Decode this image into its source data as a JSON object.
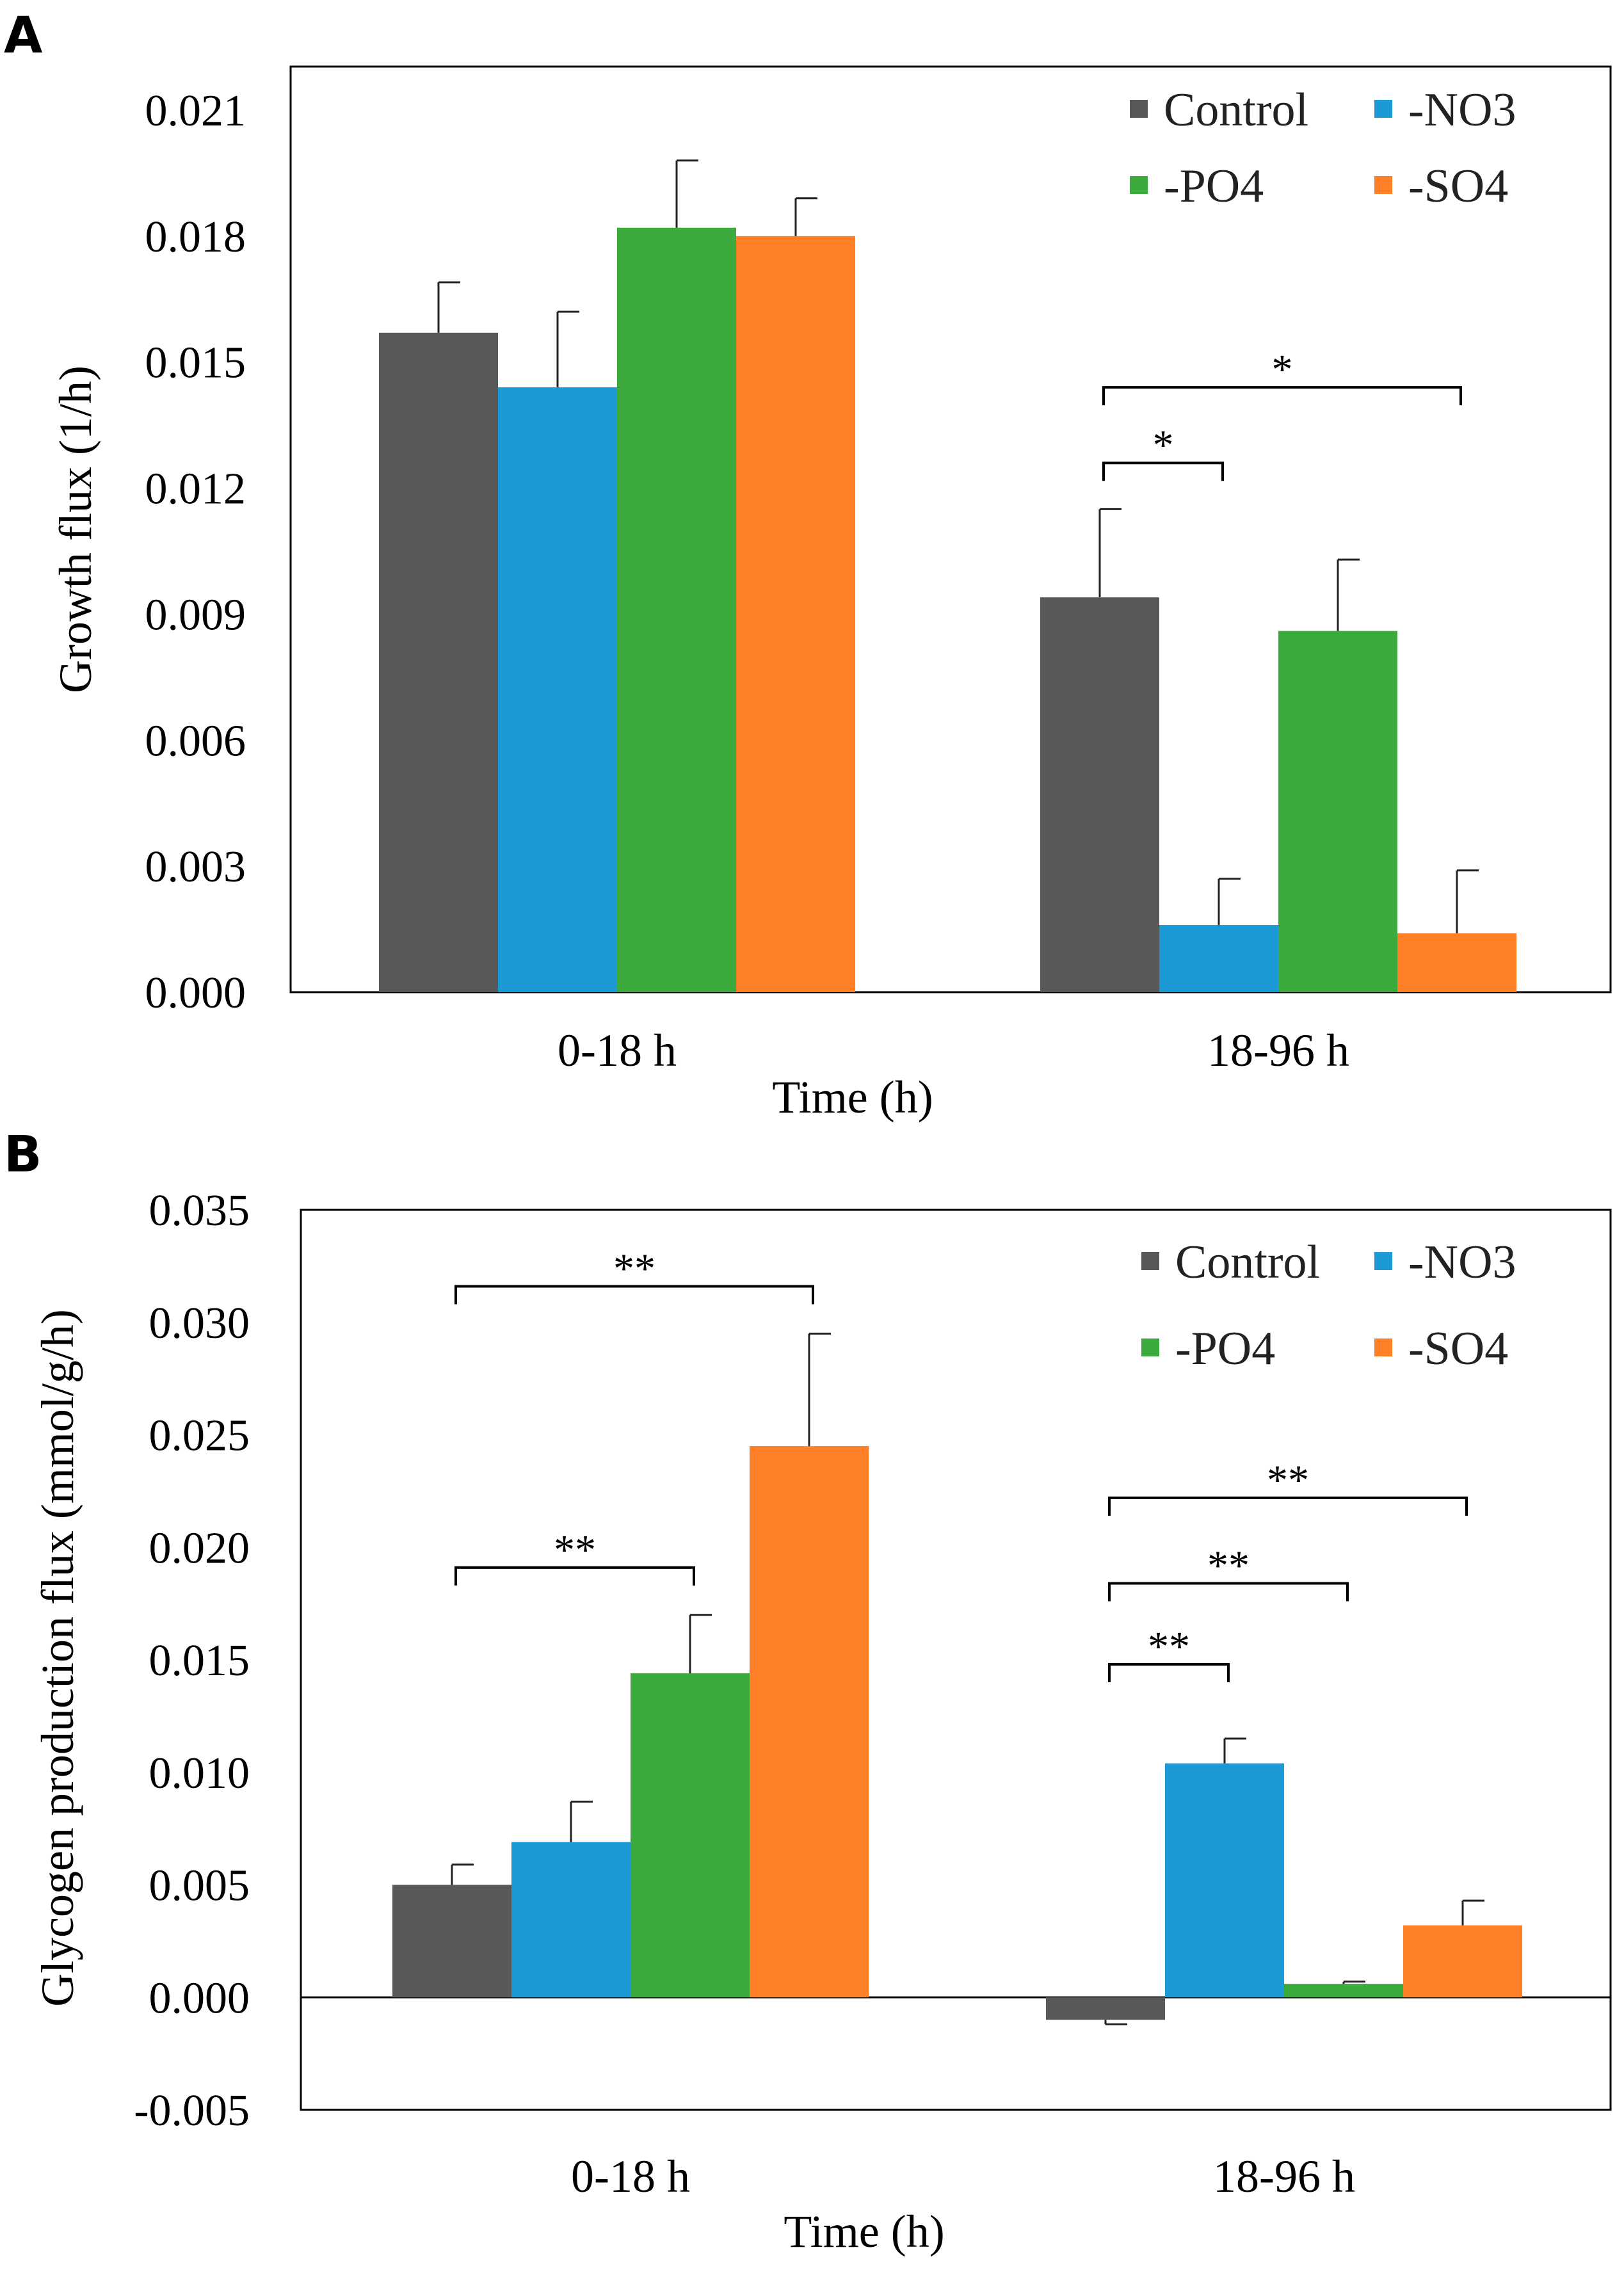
{
  "panels": [
    {
      "letter": "A",
      "chart_data": {
        "type": "bar",
        "title": "",
        "xlabel": "Time (h)",
        "ylabel": "Growth flux (1/h)",
        "ylim": [
          0,
          0.021
        ],
        "yticks": [
          "0.000",
          "0.003",
          "0.006",
          "0.009",
          "0.012",
          "0.015",
          "0.018",
          "0.021"
        ],
        "ytick_values": [
          0,
          0.003,
          0.006,
          0.009,
          0.012,
          0.015,
          0.018,
          0.021
        ],
        "categories": [
          "0-18 h",
          "18-96 h"
        ],
        "series": [
          {
            "name": "Control",
            "color": "#595959",
            "values": [
              0.0157,
              0.0094
            ],
            "errors": [
              0.0012,
              0.0021
            ]
          },
          {
            "name": "-NO3",
            "color": "#1C9AD6",
            "values": [
              0.0144,
              0.0016
            ],
            "errors": [
              0.0018,
              0.0011
            ]
          },
          {
            "name": "-PO4",
            "color": "#3DAA3D",
            "values": [
              0.0182,
              0.0086
            ],
            "errors": [
              0.0016,
              0.0017
            ]
          },
          {
            "name": "-SO4",
            "color": "#FF7F27",
            "values": [
              0.018,
              0.0014
            ],
            "errors": [
              0.0009,
              0.0015
            ]
          }
        ],
        "legend_location": "top-right",
        "annotations": [
          {
            "label": "*",
            "category": 1,
            "from_series": 0,
            "to_series": 1,
            "level": 0.0126
          },
          {
            "label": "*",
            "category": 1,
            "from_series": 0,
            "to_series": 3,
            "level": 0.0144
          }
        ]
      }
    },
    {
      "letter": "B",
      "chart_data": {
        "type": "bar",
        "title": "",
        "xlabel": "Time (h)",
        "ylabel": "Glycogen production flux (mmol/g/h)",
        "ylim": [
          -0.005,
          0.035
        ],
        "yticks": [
          "-0.005",
          "0.000",
          "0.005",
          "0.010",
          "0.015",
          "0.020",
          "0.025",
          "0.030",
          "0.035"
        ],
        "ytick_values": [
          -0.005,
          0,
          0.005,
          0.01,
          0.015,
          0.02,
          0.025,
          0.03,
          0.035
        ],
        "categories": [
          "0-18 h",
          "18-96 h"
        ],
        "series": [
          {
            "name": "Control",
            "color": "#595959",
            "values": [
              0.005,
              -0.001
            ],
            "errors": [
              0.0009,
              0.0002
            ]
          },
          {
            "name": "-NO3",
            "color": "#1C9AD6",
            "values": [
              0.0069,
              0.0104
            ],
            "errors": [
              0.0018,
              0.0011
            ]
          },
          {
            "name": "-PO4",
            "color": "#3DAA3D",
            "values": [
              0.0144,
              0.0006
            ],
            "errors": [
              0.0026,
              0.0001
            ]
          },
          {
            "name": "-SO4",
            "color": "#FF7F27",
            "values": [
              0.0245,
              0.0032
            ],
            "errors": [
              0.005,
              0.0011
            ]
          }
        ],
        "legend_location": "top-right",
        "annotations": [
          {
            "label": "**",
            "category": 0,
            "from_series": 0,
            "to_series": 2,
            "level": 0.0191
          },
          {
            "label": "**",
            "category": 0,
            "from_series": 0,
            "to_series": 3,
            "level": 0.0316
          },
          {
            "label": "**",
            "category": 1,
            "from_series": 0,
            "to_series": 1,
            "level": 0.0148
          },
          {
            "label": "**",
            "category": 1,
            "from_series": 0,
            "to_series": 2,
            "level": 0.0184
          },
          {
            "label": "**",
            "category": 1,
            "from_series": 0,
            "to_series": 3,
            "level": 0.0222
          }
        ]
      }
    }
  ]
}
